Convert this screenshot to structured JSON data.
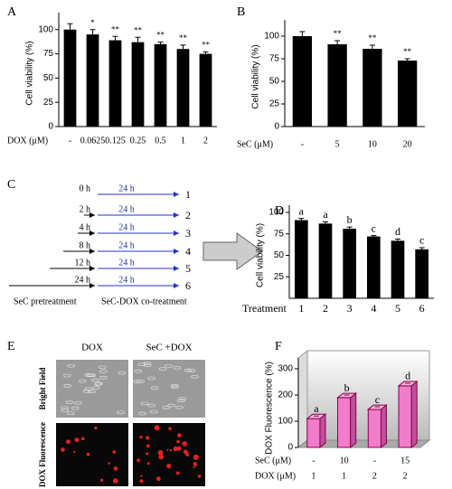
{
  "chart_data": [
    {
      "type": "bar",
      "panel": "A",
      "ylabel": "Cell viability (%)",
      "xlabel": "DOX (μM)",
      "categories": [
        "-",
        "0.0625",
        "0.125",
        "0.25",
        "0.5",
        "1",
        "2"
      ],
      "values": [
        100,
        95,
        89,
        87,
        85,
        80,
        75
      ],
      "errors": [
        6,
        5,
        4,
        5,
        2,
        4,
        2
      ],
      "annotations": [
        null,
        "*",
        "**",
        "**",
        "**",
        "**",
        "**"
      ],
      "color": "#000000",
      "ylim": [
        0,
        110
      ],
      "yticks": [
        0,
        25,
        50,
        75,
        100
      ]
    },
    {
      "type": "bar",
      "panel": "B",
      "ylabel": "Cell viability (%)",
      "xlabel": "SeC (μM)",
      "categories": [
        "-",
        "5",
        "10",
        "20"
      ],
      "values": [
        100,
        91,
        86,
        73
      ],
      "errors": [
        5,
        4,
        4,
        2
      ],
      "annotations": [
        null,
        "**",
        "**",
        "**"
      ],
      "color": "#000000",
      "ylim": [
        0,
        110
      ],
      "yticks": [
        0,
        25,
        50,
        75,
        100
      ]
    },
    {
      "type": "bar",
      "panel": "D",
      "ylabel": "Cell viability (%)",
      "xlabel": "Treatment",
      "categories": [
        "1",
        "2",
        "3",
        "4",
        "5",
        "6"
      ],
      "values": [
        91,
        87,
        81,
        72,
        67,
        57
      ],
      "errors": [
        2,
        2,
        2,
        1,
        2,
        2
      ],
      "annotations": [
        "a",
        "a",
        "b",
        "c",
        "d",
        "c"
      ],
      "color": "#000000",
      "ylim": [
        0,
        100
      ],
      "yticks": [
        25,
        50,
        75,
        100
      ]
    },
    {
      "type": "bar3d",
      "panel": "F",
      "ylabel": "DOX Fluorescence (%)",
      "rows": [
        {
          "label": "SeC (μM)",
          "values": [
            "-",
            "10",
            "-",
            "15"
          ]
        },
        {
          "label": "DOX (μM)",
          "values": [
            "1",
            "1",
            "2",
            "2"
          ]
        }
      ],
      "values": [
        110,
        190,
        145,
        235
      ],
      "errors": [
        10,
        10,
        10,
        10
      ],
      "annotations": [
        "a",
        "b",
        "c",
        "d"
      ],
      "color": "#f07ccc",
      "ylim": [
        0,
        300
      ],
      "yticks": [
        0,
        100,
        200,
        300
      ]
    }
  ],
  "diagram": {
    "panel": "C",
    "pretreatment_times": [
      "0 h",
      "2 h",
      "4 h",
      "8 h",
      "12 h",
      "24 h"
    ],
    "cotreatment_time": "24 h",
    "groups": [
      "1",
      "2",
      "3",
      "4",
      "5",
      "6"
    ],
    "caption_left": "SeC pretreatment",
    "caption_right": "SeC-DOX co-treatment"
  },
  "images": {
    "panel": "E",
    "columns": [
      "DOX",
      "SeC +DOX"
    ],
    "rows": [
      "Bright Field",
      "DOX Fluorescence"
    ]
  }
}
